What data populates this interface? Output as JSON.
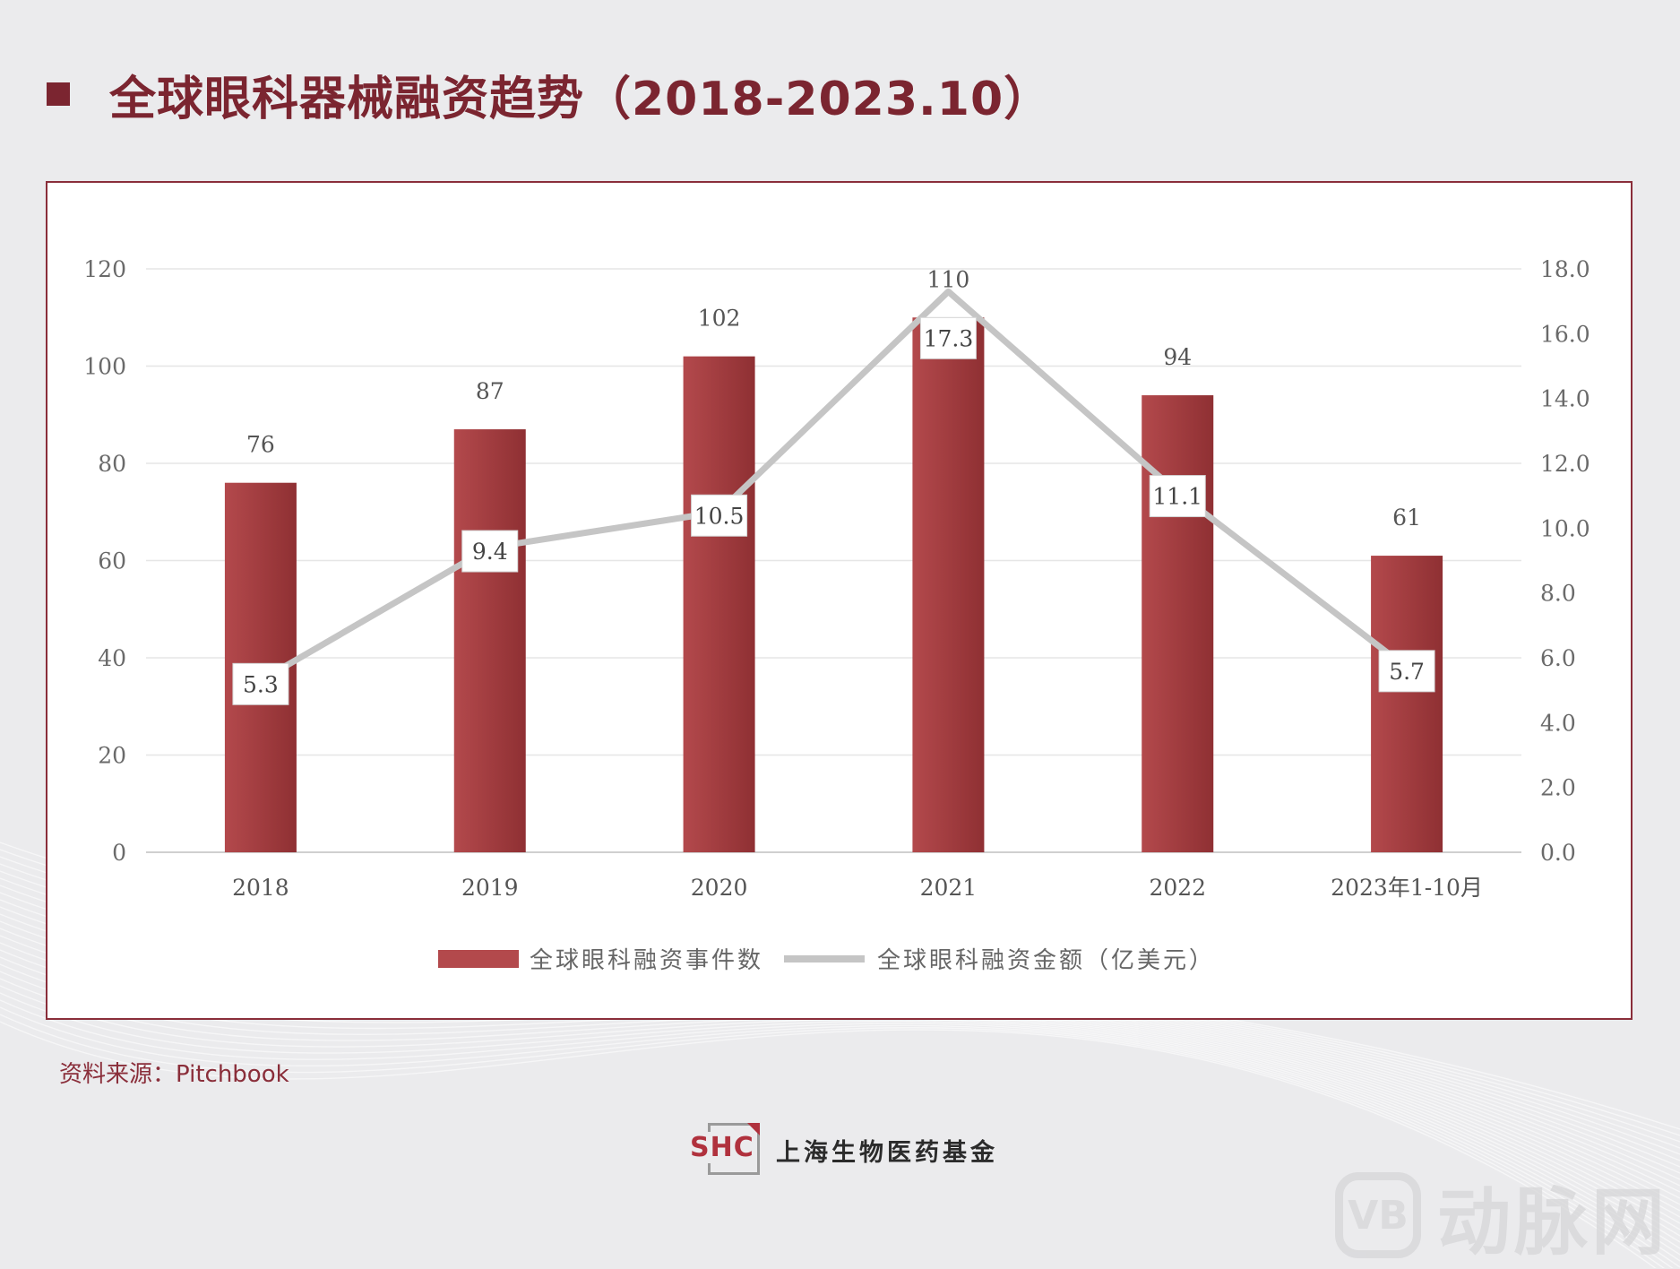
{
  "page": {
    "title": "全球眼科器械融资趋势（2018-2023.10）",
    "source": "资料来源：Pitchbook",
    "org_name": "上海生物医药基金",
    "logo_text": "SHC",
    "watermark_badge": "VB",
    "watermark_text": "动脉网"
  },
  "colors": {
    "title": "#7b2530",
    "bar": "#b3494c",
    "bar_dark": "#8f3033",
    "line": "#c5c5c5",
    "card_border": "#8a2e3a"
  },
  "chart_data": {
    "type": "bar",
    "title": "",
    "categories": [
      "2018",
      "2019",
      "2020",
      "2021",
      "2022",
      "2023年1-10月"
    ],
    "series": [
      {
        "name": "全球眼科融资事件数",
        "type": "bar",
        "axis": "left",
        "values": [
          76,
          87,
          102,
          110,
          94,
          61
        ]
      },
      {
        "name": "全球眼科融资金额（亿美元）",
        "type": "line",
        "axis": "right",
        "values": [
          5.3,
          9.4,
          10.5,
          17.3,
          11.1,
          5.7
        ]
      }
    ],
    "y_left": {
      "min": 0,
      "max": 120,
      "ticks": [
        "0",
        "20",
        "40",
        "60",
        "80",
        "100",
        "120"
      ]
    },
    "y_right": {
      "min": 0,
      "max": 18,
      "ticks": [
        "0.0",
        "2.0",
        "4.0",
        "6.0",
        "8.0",
        "10.0",
        "12.0",
        "14.0",
        "16.0",
        "18.0"
      ]
    },
    "grid": true,
    "legend_position": "bottom-center"
  }
}
